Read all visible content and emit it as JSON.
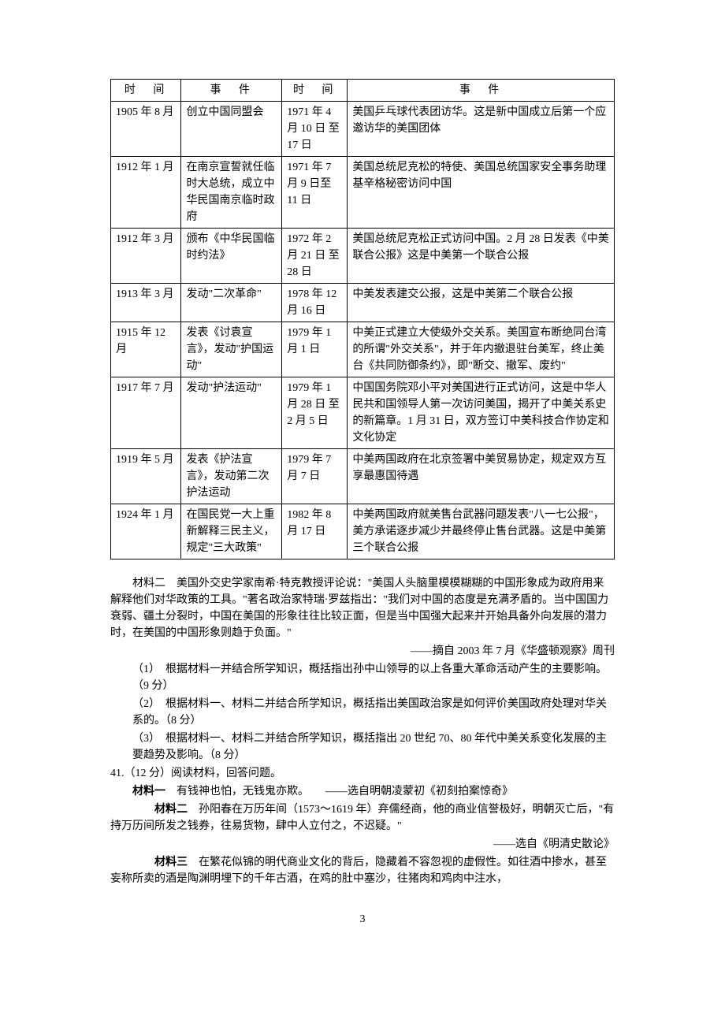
{
  "table": {
    "headers": [
      "时　间",
      "事　件",
      "时　间",
      "事　件"
    ],
    "rows": [
      [
        "1905 年 8 月",
        "创立中国同盟会",
        "1971 年 4 月 10 日 至 17 日",
        "美国乒乓球代表团访华。这是新中国成立后第一个应邀访华的美国团体"
      ],
      [
        "1912 年 1 月",
        "在南京宣誓就任临时大总统，成立中华民国南京临时政府",
        "1971 年 7 月 9 日至 11 日",
        "美国总统尼克松的特使、美国总统国家安全事务助理基辛格秘密访问中国"
      ],
      [
        "1912 年 3 月",
        "颁布《中华民国临时约法》",
        "1972 年 2 月 21 日 至 28 日",
        "美国总统尼克松正式访问中国。2 月 28 日发表《中美联合公报》这是中美第一个联合公报"
      ],
      [
        "1913 年 3 月",
        "发动\"二次革命\"",
        "1978 年 12 月 16 日",
        "中美发表建交公报，这是中美第二个联合公报"
      ],
      [
        "1915 年 12 月",
        "发表《讨袁宣言》，发动\"护国运动\"",
        "1979 年 1 月 1 日",
        "中美正式建立大使级外交关系。美国宣布断绝同台湾的所谓\"外交关系\"，并于年内撤退驻台美军，终止美台《共同防御条约》，即\"断交、撤军、废约\""
      ],
      [
        "1917 年 7 月",
        "发动\"护法运动\"",
        "1979 年 1 月 28 日 至 2 月 5 日",
        "中国国务院邓小平对美国进行正式访问，这是中华人民共和国领导人第一次访问美国，揭开了中美关系史的新篇章。1 月 31 日，双方签订中美科技合作协定和文化协定"
      ],
      [
        "1919 年 5 月",
        "发表《护法宣言》，发动第二次护法运动",
        "1979 年 7 月 7 日",
        "中美两国政府在北京签署中美贸易协定，规定双方互享最惠国待遇"
      ],
      [
        "1924 年 1 月",
        "在国民党一大上重新解释三民主义，规定\"三大政策\"",
        "1982 年 8 月 17 日",
        "中美两国政府就美售台武器问题发表\"八一七公报\"，美方承诺逐步减少并最终停止售台武器。这是中美第三个联合公报"
      ]
    ]
  },
  "material2": {
    "body": "材料二　美国外交史学家南希·特克教授评论说：\"美国人头脑里模模糊糊的中国形象成为政府用来解释他们对华政策的工具。\"著名政治家特瑞·罗兹指出：\"我们对中国的态度是充满矛盾的。当中国国力衰弱、疆土分裂时，中国在美国的形象往往比较正面，但是当中国强大起来并开始具备外向发展的潜力时，在美国的中国形象则趋于负面。\"",
    "source": "——摘自 2003 年 7 月《华盛顿观察》周刊"
  },
  "questions": [
    {
      "num": "（1）",
      "text": "根据材料一并结合所学知识，概括指出孙中山领导的以上各重大革命活动产生的主要影响。（9 分）"
    },
    {
      "num": "（2）",
      "text": "根据材料一、材料二并结合所学知识，概括指出美国政治家是如何评价美国政府处理对华关系的。（8 分）"
    },
    {
      "num": "（3）",
      "text": "根据材料一、材料二并结合所学知识，概括指出 20 世纪 70、80 年代中美关系变化发展的主要趋势及影响。（8 分）"
    }
  ],
  "q41": {
    "title": "41.（12 分）阅读材料，回答问题。",
    "m1_label": "材料一",
    "m1_text": "　有钱神也怕，无钱鬼亦欺。　　——选自明朝凌蒙初《初刻拍案惊奇》",
    "m2_label": "材料二",
    "m2_text": "　孙阳春在万历年间（1573～1619 年）弃儒经商，他的商业信誉极好，明朝灭亡后，\"有持万历间所发之钱券，往易货物，肆中人立付之，不迟疑。\"",
    "m2_source": "——选自《明清史散论》",
    "m3_label": "材料三",
    "m3_text": "　在繁花似锦的明代商业文化的背后，隐藏着不容忽视的虚假性。如往酒中掺水，甚至妄称所卖的酒是陶渊明埋下的千年古酒，在鸡的肚中塞沙，往猪肉和鸡肉中注水，"
  },
  "page_num": "3"
}
